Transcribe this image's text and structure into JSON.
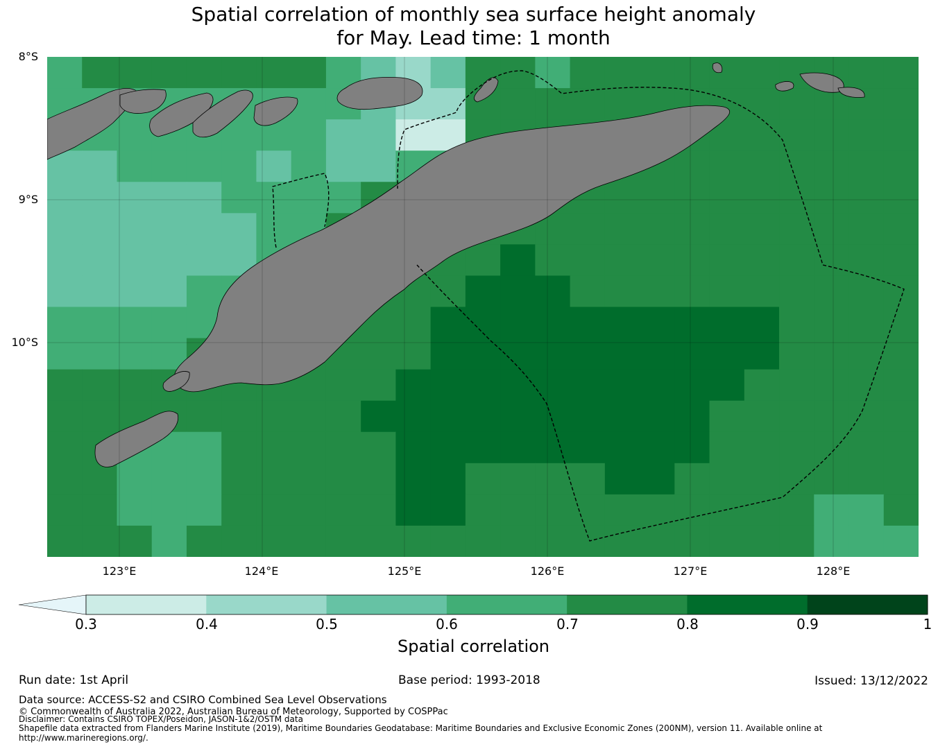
{
  "title": {
    "line1": "Spatial correlation of monthly sea surface height anomaly",
    "line2": "for May. Lead time: 1 month"
  },
  "map": {
    "lat_labels": [
      "8°S",
      "9°S",
      "10°S"
    ],
    "lon_labels": [
      "123°E",
      "124°E",
      "125°E",
      "126°E",
      "127°E",
      "128°E"
    ],
    "lon_range": [
      122.5,
      128.6
    ],
    "lat_range": [
      -8.0,
      -11.5
    ],
    "land_color": "#808080",
    "grid": true
  },
  "colorbar": {
    "label": "Spatial correlation",
    "ticks": [
      "0.3",
      "0.4",
      "0.5",
      "0.6",
      "0.7",
      "0.8",
      "0.9",
      "1"
    ],
    "colors": [
      "#e5f5f9",
      "#ccece6",
      "#99d8c9",
      "#66c2a4",
      "#41ae76",
      "#238b45",
      "#006d2c",
      "#00441b"
    ],
    "extend": "min"
  },
  "chart_data": {
    "type": "heatmap",
    "title": "Spatial correlation of monthly sea surface height anomaly for May. Lead time: 1 month",
    "x_label": "",
    "y_label": "",
    "colorbar_label": "Spatial correlation",
    "levels": [
      0.3,
      0.4,
      0.5,
      0.6,
      0.7,
      0.8,
      0.9,
      1.0
    ],
    "grid_note": "row 0 = northernmost; values are correlation bins (lower bound)",
    "cells": [
      [
        0.6,
        0.7,
        0.7,
        0.7,
        0.7,
        0.7,
        0.7,
        0.7,
        0.6,
        0.5,
        0.4,
        0.5,
        0.7,
        0.7,
        0.6,
        0.7,
        0.7,
        0.7,
        0.7,
        0.7,
        0.7,
        0.7,
        0.7,
        0.7,
        0.7
      ],
      [
        0.6,
        0.6,
        0.6,
        0.6,
        0.6,
        0.6,
        0.6,
        0.6,
        0.6,
        0.5,
        0.4,
        0.4,
        0.7,
        0.7,
        0.7,
        0.7,
        0.7,
        0.7,
        0.7,
        0.7,
        0.7,
        0.7,
        0.7,
        0.7,
        0.7
      ],
      [
        0.6,
        0.6,
        0.6,
        0.6,
        0.6,
        0.6,
        0.6,
        0.6,
        0.5,
        0.5,
        0.3,
        0.3,
        0.7,
        0.7,
        0.7,
        0.7,
        0.7,
        0.7,
        0.7,
        0.7,
        0.7,
        0.7,
        0.7,
        0.7,
        0.7
      ],
      [
        0.5,
        0.5,
        0.6,
        0.6,
        0.6,
        0.6,
        0.5,
        0.6,
        0.5,
        0.5,
        0.6,
        0.6,
        0.7,
        0.7,
        0.7,
        0.7,
        0.7,
        0.7,
        0.7,
        0.7,
        0.7,
        0.7,
        0.7,
        0.7,
        0.7
      ],
      [
        0.5,
        0.5,
        0.5,
        0.5,
        0.5,
        0.6,
        0.6,
        0.6,
        0.6,
        0.7,
        0.7,
        0.7,
        0.7,
        0.7,
        0.7,
        0.7,
        0.7,
        0.7,
        0.7,
        0.7,
        0.7,
        0.7,
        0.7,
        0.7,
        0.7
      ],
      [
        0.5,
        0.5,
        0.5,
        0.5,
        0.5,
        0.5,
        0.6,
        0.6,
        0.7,
        0.7,
        0.7,
        0.7,
        0.7,
        0.7,
        0.7,
        0.7,
        0.7,
        0.7,
        0.7,
        0.7,
        0.7,
        0.7,
        0.7,
        0.7,
        0.7
      ],
      [
        0.5,
        0.5,
        0.5,
        0.5,
        0.5,
        0.5,
        0.6,
        0.6,
        0.6,
        0.7,
        0.7,
        0.7,
        0.7,
        0.8,
        0.7,
        0.7,
        0.7,
        0.7,
        0.7,
        0.7,
        0.7,
        0.7,
        0.7,
        0.7,
        0.7
      ],
      [
        0.5,
        0.5,
        0.5,
        0.5,
        0.6,
        0.6,
        0.6,
        0.6,
        0.6,
        0.7,
        0.7,
        0.7,
        0.8,
        0.8,
        0.8,
        0.7,
        0.7,
        0.7,
        0.7,
        0.7,
        0.7,
        0.7,
        0.7,
        0.7,
        0.7
      ],
      [
        0.6,
        0.6,
        0.6,
        0.6,
        0.6,
        0.6,
        0.6,
        0.6,
        0.7,
        0.7,
        0.7,
        0.8,
        0.8,
        0.8,
        0.8,
        0.8,
        0.8,
        0.8,
        0.8,
        0.8,
        0.8,
        0.7,
        0.7,
        0.7,
        0.7
      ],
      [
        0.6,
        0.6,
        0.6,
        0.6,
        0.7,
        0.7,
        0.7,
        0.7,
        0.7,
        0.7,
        0.7,
        0.8,
        0.8,
        0.8,
        0.8,
        0.8,
        0.8,
        0.8,
        0.8,
        0.8,
        0.8,
        0.7,
        0.7,
        0.7,
        0.7
      ],
      [
        0.7,
        0.7,
        0.7,
        0.7,
        0.7,
        0.7,
        0.7,
        0.7,
        0.7,
        0.7,
        0.8,
        0.8,
        0.8,
        0.8,
        0.8,
        0.8,
        0.8,
        0.8,
        0.8,
        0.8,
        0.7,
        0.7,
        0.7,
        0.7,
        0.7
      ],
      [
        0.7,
        0.7,
        0.7,
        0.7,
        0.7,
        0.7,
        0.7,
        0.7,
        0.7,
        0.8,
        0.8,
        0.8,
        0.8,
        0.8,
        0.8,
        0.8,
        0.8,
        0.8,
        0.8,
        0.7,
        0.7,
        0.7,
        0.7,
        0.7,
        0.7
      ],
      [
        0.7,
        0.7,
        0.6,
        0.6,
        0.6,
        0.7,
        0.7,
        0.7,
        0.7,
        0.7,
        0.8,
        0.8,
        0.8,
        0.8,
        0.8,
        0.8,
        0.8,
        0.8,
        0.8,
        0.7,
        0.7,
        0.7,
        0.7,
        0.7,
        0.7
      ],
      [
        0.7,
        0.7,
        0.6,
        0.6,
        0.6,
        0.7,
        0.7,
        0.7,
        0.7,
        0.7,
        0.8,
        0.8,
        0.7,
        0.7,
        0.7,
        0.7,
        0.8,
        0.8,
        0.7,
        0.7,
        0.7,
        0.7,
        0.7,
        0.7,
        0.7
      ],
      [
        0.7,
        0.7,
        0.6,
        0.6,
        0.6,
        0.7,
        0.7,
        0.7,
        0.7,
        0.7,
        0.8,
        0.8,
        0.7,
        0.7,
        0.7,
        0.7,
        0.7,
        0.7,
        0.7,
        0.7,
        0.7,
        0.7,
        0.6,
        0.6,
        0.7
      ],
      [
        0.7,
        0.7,
        0.7,
        0.6,
        0.7,
        0.7,
        0.7,
        0.7,
        0.7,
        0.7,
        0.7,
        0.7,
        0.7,
        0.7,
        0.7,
        0.7,
        0.7,
        0.7,
        0.7,
        0.7,
        0.7,
        0.7,
        0.6,
        0.6,
        0.6
      ]
    ]
  },
  "footer": {
    "run_date": "Run date: 1st April",
    "base_period": "Base period: 1993-2018",
    "issued": "Issued: 13/12/2022",
    "data_source": "Data source: ACCESS-S2 and CSIRO Combined Sea Level Observations",
    "copyright": "© Commonwealth of Australia 2022, Australian Bureau of Meteorology, Supported by COSPPac",
    "disclaimer": "Disclaimer: Contains CSIRO TOPEX/Poseidon, JASON-1&2/OSTM data",
    "shapefile": "Shapefile data extracted from Flanders Marine Institute (2019), Maritime Boundaries Geodatabase: Maritime Boundaries and Exclusive Economic Zones (200NM), version 11. Available online at",
    "url": "http://www.marineregions.org/."
  }
}
